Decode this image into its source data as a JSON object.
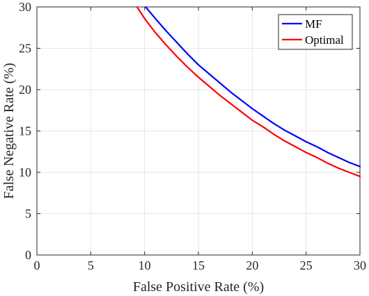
{
  "chart_data": {
    "type": "line",
    "xlabel": "False Positive Rate (%)",
    "ylabel": "False Negative Rate (%)",
    "xlim": [
      0,
      30
    ],
    "ylim": [
      0,
      30
    ],
    "xticks": [
      0,
      5,
      10,
      15,
      20,
      25,
      30
    ],
    "yticks": [
      0,
      5,
      10,
      15,
      20,
      25,
      30
    ],
    "grid": true,
    "legend_position": "top-right",
    "series": [
      {
        "name": "MF",
        "color": "#0000ff",
        "x": [
          10.1,
          11,
          12,
          13,
          14,
          15,
          16,
          17,
          18,
          19,
          20,
          21,
          22,
          23,
          24,
          25,
          26,
          27,
          28,
          29,
          30
        ],
        "y": [
          30,
          28.6,
          27.1,
          25.7,
          24.3,
          23,
          21.9,
          20.8,
          19.7,
          18.7,
          17.7,
          16.8,
          15.9,
          15.1,
          14.4,
          13.7,
          13.1,
          12.4,
          11.8,
          11.2,
          10.7
        ]
      },
      {
        "name": "Optimal",
        "color": "#ff0000",
        "x": [
          9.3,
          10,
          11,
          12,
          13,
          14,
          15,
          16,
          17,
          18,
          19,
          20,
          21,
          22,
          23,
          24,
          25,
          26,
          27,
          28,
          29,
          30
        ],
        "y": [
          30,
          28.6,
          26.9,
          25.4,
          24,
          22.7,
          21.5,
          20.4,
          19.3,
          18.3,
          17.3,
          16.3,
          15.5,
          14.6,
          13.8,
          13.1,
          12.4,
          11.8,
          11.1,
          10.5,
          10,
          9.5
        ]
      }
    ]
  }
}
